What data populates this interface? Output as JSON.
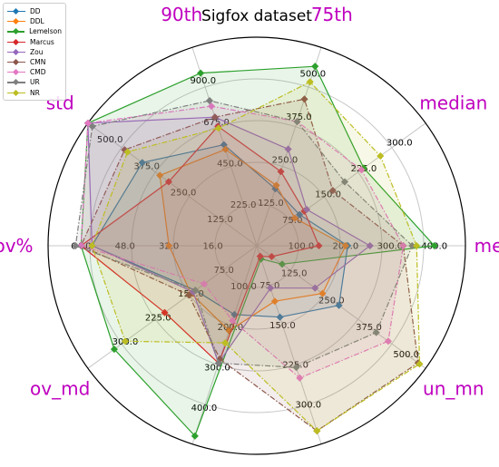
{
  "chart_data": {
    "type": "radar",
    "title": "Sigfox dataset",
    "legend_position": "top-left",
    "axes": [
      {
        "label": "mean",
        "ticks": [
          100.0,
          200.0,
          300.0,
          400.0
        ],
        "range": [
          0,
          470
        ]
      },
      {
        "label": "median",
        "ticks": [
          75.0,
          150.0,
          225.0,
          300.0
        ],
        "range": [
          0,
          355
        ]
      },
      {
        "label": "75th",
        "ticks": [
          125.0,
          250.0,
          375.0,
          500.0
        ],
        "range": [
          0,
          575
        ]
      },
      {
        "label": "90th",
        "ticks": [
          225.0,
          450.0,
          675.0,
          900.0
        ],
        "range": [
          0,
          1080
        ]
      },
      {
        "label": "std",
        "ticks": [
          125.0,
          250.0,
          375.0,
          500.0
        ],
        "range": [
          0,
          575
        ]
      },
      {
        "label": "ov%",
        "ticks": [
          16.0,
          32.0,
          48.0,
          64.0
        ],
        "range": [
          0,
          76
        ]
      },
      {
        "label": "ov_md",
        "ticks": [
          75.0,
          150.0,
          225.0,
          300.0
        ],
        "range": [
          0,
          385
        ]
      },
      {
        "label": "ov_mn",
        "ticks": [
          100.0,
          200.0,
          300.0,
          400.0
        ],
        "range": [
          0,
          490
        ]
      },
      {
        "label": "un_md",
        "ticks": [
          75.0,
          150.0,
          225.0,
          300.0
        ],
        "range": [
          0,
          375
        ]
      },
      {
        "label": "un_mn",
        "ticks": [
          125.0,
          250.0,
          375.0,
          500.0
        ],
        "range": [
          0,
          565
        ]
      }
    ],
    "series": [
      {
        "name": "DD",
        "color": "#1f77b4",
        "linestyle": "solid",
        "values": [
          205,
          90,
          165,
          550,
          390,
          60,
          140,
          170,
          135,
          275
        ]
      },
      {
        "name": "DDL",
        "color": "#ff7f0e",
        "linestyle": "solid",
        "values": [
          200,
          80,
          175,
          525,
          330,
          32,
          150,
          210,
          105,
          220
        ]
      },
      {
        "name": "Lemelson",
        "color": "#2ca02c",
        "linestyle": "solid",
        "values": [
          400,
          225,
          520,
          940,
          600,
          64,
          325,
          470,
          25,
          85
        ]
      },
      {
        "name": "Marcus",
        "color": "#d62728",
        "linestyle": "solid",
        "values": [
          140,
          100,
          215,
          650,
          300,
          64,
          210,
          290,
          20,
          50
        ]
      },
      {
        "name": "Zou",
        "color": "#9467bd",
        "linestyle": "solid",
        "values": [
          255,
          105,
          280,
          700,
          580,
          60,
          145,
          290,
          80,
          195
        ]
      },
      {
        "name": "CMN",
        "color": "#8c564b",
        "linestyle": "dashdot",
        "values": [
          330,
          160,
          425,
          700,
          450,
          64,
          155,
          280,
          350,
          540
        ]
      },
      {
        "name": "CMD",
        "color": "#e377c2",
        "linestyle": "dashdot",
        "values": [
          330,
          220,
          360,
          760,
          580,
          64,
          120,
          185,
          250,
          440
        ]
      },
      {
        "name": "UR",
        "color": "#7f7f7f",
        "linestyle": "dashdot",
        "values": [
          350,
          185,
          360,
          790,
          560,
          66,
          140,
          290,
          230,
          400
        ]
      },
      {
        "name": "NR",
        "color": "#bcbd22",
        "linestyle": "dashdot",
        "values": [
          360,
          260,
          475,
          640,
          440,
          60,
          300,
          240,
          350,
          545
        ]
      }
    ]
  }
}
